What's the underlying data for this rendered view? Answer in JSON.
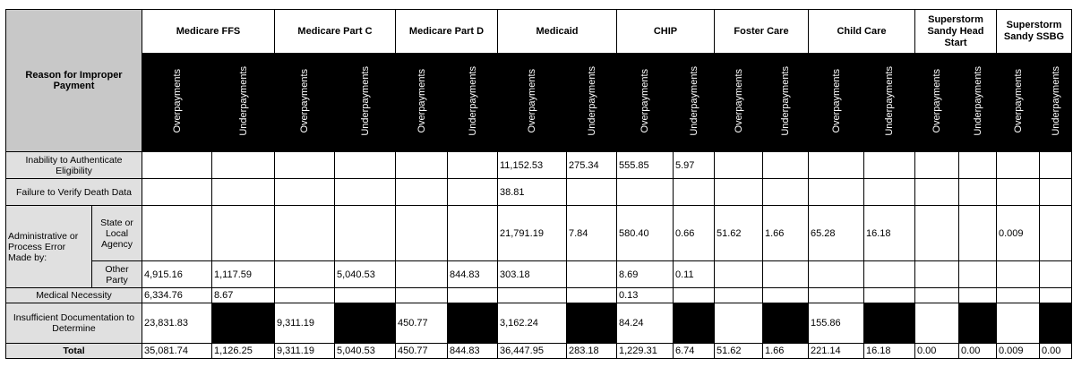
{
  "header": {
    "reason_label": "Reason for Improper Payment",
    "groups": [
      "Medicare FFS",
      "Medicare Part C",
      "Medicare Part D",
      "Medicaid",
      "CHIP",
      "Foster Care",
      "Child Care",
      "Superstorm Sandy Head Start",
      "Superstorm Sandy SSBG"
    ],
    "over_label": "Overpayments",
    "under_label": "Underpayments"
  },
  "rows": {
    "authenticate": {
      "label": "Inability to Authenticate Eligibility",
      "values": [
        "",
        "",
        "",
        "",
        "",
        "",
        "11,152.53",
        "275.34",
        "555.85",
        "5.97",
        "",
        "",
        "",
        "",
        "",
        "",
        "",
        ""
      ]
    },
    "death_data": {
      "label": "Failure to Verify Death Data",
      "values": [
        "",
        "",
        "",
        "",
        "",
        "",
        "38.81",
        "",
        "",
        "",
        "",
        "",
        "",
        "",
        "",
        "",
        "",
        ""
      ]
    },
    "admin_state": {
      "group_label": "Administrative or Process Error Made by:",
      "label": "State or Local Agency",
      "values": [
        "",
        "",
        "",
        "",
        "",
        "",
        "21,791.19",
        "7.84",
        "580.40",
        "0.66",
        "51.62",
        "1.66",
        "65.28",
        "16.18",
        "",
        "",
        "0.009",
        ""
      ]
    },
    "admin_other": {
      "label": "Other Party",
      "values": [
        "4,915.16",
        "1,117.59",
        "",
        "5,040.53",
        "",
        "844.83",
        "303.18",
        "",
        "8.69",
        "0.11",
        "",
        "",
        "",
        "",
        "",
        "",
        "",
        ""
      ]
    },
    "medical": {
      "label": "Medical Necessity",
      "values": [
        "6,334.76",
        "8.67",
        "",
        "",
        "",
        "",
        "",
        "",
        "0.13",
        "",
        "",
        "",
        "",
        "",
        "",
        "",
        "",
        ""
      ]
    },
    "insufficient": {
      "label": "Insufficient Documentation to Determine",
      "values": [
        "23,831.83",
        "",
        "9,311.19",
        "",
        "450.77",
        "",
        "3,162.24",
        "",
        "84.24",
        "",
        "",
        "",
        "155.86",
        "",
        "",
        "",
        "",
        ""
      ]
    },
    "total": {
      "label": "Total",
      "values": [
        "35,081.74",
        "1,126.25",
        "9,311.19",
        "5,040.53",
        "450.77",
        "844.83",
        "36,447.95",
        "283.18",
        "1,229.31",
        "6.74",
        "51.62",
        "1.66",
        "221.14",
        "16.18",
        "0.00",
        "0.00",
        "0.009",
        "0.00"
      ]
    }
  },
  "colors": {
    "header_fill": "#c8c8c8",
    "label_fill": "#e0e0e0",
    "subheader_fill": "#000000",
    "blank_fill": "#000000"
  }
}
